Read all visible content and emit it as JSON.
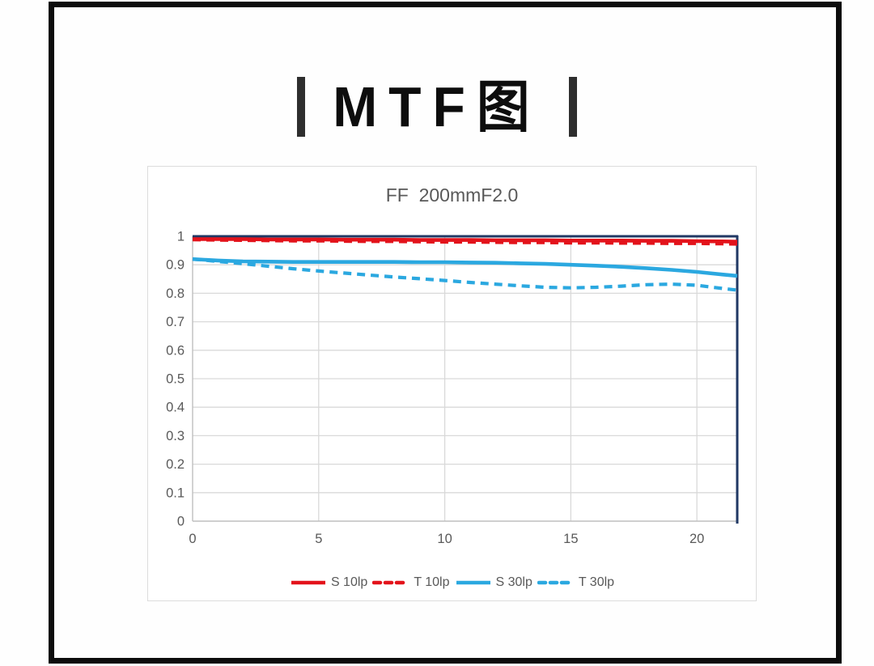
{
  "page": {
    "title_bar_left": "|",
    "title_text": "MTF图",
    "title_bar_right": "|"
  },
  "colors": {
    "red": "#e3131b",
    "blue": "#2ba8e0",
    "navy": "#203864",
    "grid": "#d9d9d9",
    "axis_line": "#bfbfbf",
    "axis_text": "#595959",
    "title_text": "#595959",
    "frame": "#0c0c0c",
    "card_border": "#dcdcdc"
  },
  "chart_data": {
    "type": "line",
    "title": "FF  200mmF2.0",
    "xlabel": "",
    "ylabel": "",
    "xlim": [
      0,
      21.6
    ],
    "ylim": [
      0,
      1
    ],
    "x_ticks": [
      0,
      5,
      10,
      15,
      20
    ],
    "y_ticks": [
      0,
      0.1,
      0.2,
      0.3,
      0.4,
      0.5,
      0.6,
      0.7,
      0.8,
      0.9,
      1
    ],
    "grid": true,
    "legend_position": "bottom",
    "x": [
      0,
      1,
      2,
      3,
      4,
      5,
      6,
      7,
      8,
      9,
      10,
      11,
      12,
      13,
      14,
      15,
      16,
      17,
      18,
      19,
      20,
      21,
      21.6
    ],
    "series": [
      {
        "name": "S 10lp",
        "color": "red",
        "style": "solid",
        "values": [
          0.99,
          0.99,
          0.99,
          0.989,
          0.989,
          0.989,
          0.988,
          0.988,
          0.988,
          0.987,
          0.987,
          0.987,
          0.986,
          0.986,
          0.986,
          0.985,
          0.985,
          0.985,
          0.984,
          0.984,
          0.983,
          0.982,
          0.981
        ]
      },
      {
        "name": "T 10lp",
        "color": "red",
        "style": "dashed",
        "values": [
          0.988,
          0.987,
          0.986,
          0.985,
          0.984,
          0.984,
          0.983,
          0.982,
          0.982,
          0.981,
          0.98,
          0.98,
          0.979,
          0.978,
          0.978,
          0.977,
          0.977,
          0.976,
          0.976,
          0.975,
          0.975,
          0.974,
          0.973
        ]
      },
      {
        "name": "S 30lp",
        "color": "blue",
        "style": "solid",
        "values": [
          0.92,
          0.915,
          0.912,
          0.911,
          0.91,
          0.91,
          0.91,
          0.91,
          0.91,
          0.909,
          0.909,
          0.908,
          0.907,
          0.905,
          0.903,
          0.9,
          0.897,
          0.893,
          0.888,
          0.882,
          0.875,
          0.866,
          0.861
        ]
      },
      {
        "name": "T 30lp",
        "color": "blue",
        "style": "dashed",
        "values": [
          0.92,
          0.912,
          0.904,
          0.895,
          0.886,
          0.878,
          0.871,
          0.864,
          0.857,
          0.851,
          0.845,
          0.838,
          0.832,
          0.826,
          0.821,
          0.819,
          0.821,
          0.825,
          0.83,
          0.832,
          0.828,
          0.817,
          0.811
        ]
      }
    ]
  }
}
